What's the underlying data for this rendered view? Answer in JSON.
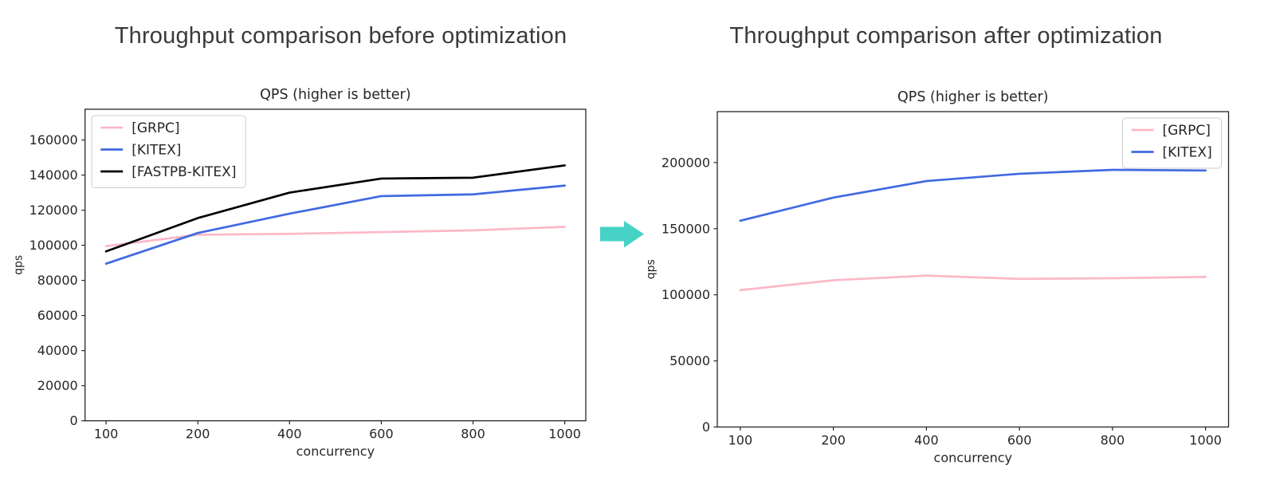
{
  "page": {
    "background": "#ffffff"
  },
  "arrow": {
    "color": "#46d2c5",
    "direction": "right"
  },
  "chart_data": [
    {
      "type": "line",
      "heading": "Throughput comparison before optimization",
      "title": "QPS (higher is better)",
      "xlabel": "concurrency",
      "ylabel": "qps",
      "categories": [
        "100",
        "200",
        "400",
        "600",
        "800",
        "1000"
      ],
      "x_spacing": "equal",
      "grid": false,
      "yticks": [
        0,
        20000,
        40000,
        60000,
        80000,
        100000,
        120000,
        140000,
        160000
      ],
      "ylim": [
        0,
        177500
      ],
      "legend_position": "upper left",
      "series": [
        {
          "name": "[GRPC]",
          "color": "#fbb8c6",
          "values": [
            99500,
            106000,
            106500,
            107500,
            108500,
            110500
          ]
        },
        {
          "name": "[KITEX]",
          "color": "#4169e1",
          "values": [
            89500,
            107000,
            118000,
            128000,
            129000,
            134000
          ]
        },
        {
          "name": "[FASTPB-KITEX]",
          "color": "#000000",
          "values": [
            96500,
            115500,
            130000,
            138000,
            138500,
            145500
          ]
        }
      ]
    },
    {
      "type": "line",
      "heading": "Throughput comparison after optimization",
      "title": "QPS (higher is better)",
      "xlabel": "concurrency",
      "ylabel": "qps",
      "categories": [
        "100",
        "200",
        "400",
        "600",
        "800",
        "1000"
      ],
      "x_spacing": "equal",
      "grid": false,
      "yticks": [
        0,
        50000,
        100000,
        150000,
        200000
      ],
      "ylim": [
        0,
        238500
      ],
      "legend_position": "upper right",
      "series": [
        {
          "name": "[GRPC]",
          "color": "#fbb8c6",
          "values": [
            103500,
            111000,
            114500,
            112000,
            112500,
            113500
          ]
        },
        {
          "name": "[KITEX]",
          "color": "#4169e1",
          "values": [
            156000,
            173500,
            186000,
            191500,
            194500,
            194000
          ]
        }
      ]
    }
  ]
}
